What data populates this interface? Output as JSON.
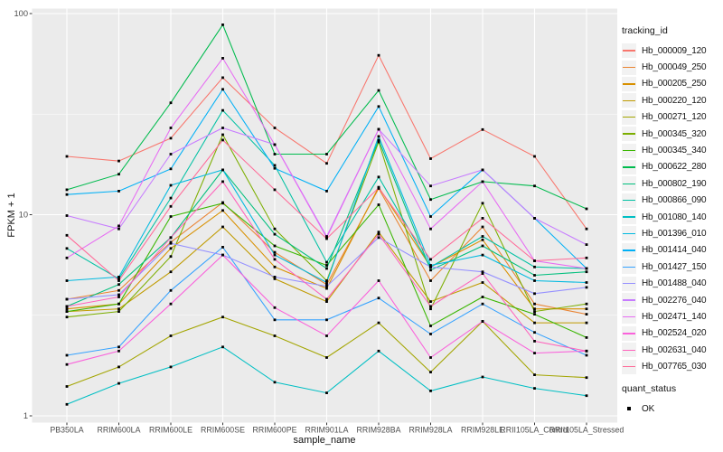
{
  "chart_data": {
    "type": "line",
    "title": "",
    "xlabel": "sample_name",
    "ylabel": "FPKM + 1",
    "y_scale": "log10",
    "grid": true,
    "legend_position": "right",
    "panel_bg": "#EBEBEB",
    "gridline_color": "#FFFFFF",
    "axis_text_color": "#4D4D4D",
    "tick_color": "#333333",
    "point_marker": {
      "shape": "square",
      "color": "#000000",
      "size": 2.8
    },
    "y_ticks": [
      1,
      10,
      100
    ],
    "y_tick_labels": [
      "1",
      "10",
      "100"
    ],
    "y_minor_gridlines": [
      3.162,
      31.623
    ],
    "ylim": [
      0.93,
      106
    ],
    "categories": [
      "PB350LA",
      "RRIM600LA",
      "RRIM600LE",
      "RRIM600SE",
      "RRIM600PE",
      "RRIM901LA",
      "RRIM928BA",
      "RRIM928LA",
      "RRIM928LE",
      "RRII105LA_Control",
      "RRII105LA_Stressed"
    ],
    "legend_title": "tracking_id",
    "series": [
      {
        "name": "Hb_000009_120",
        "color": "#F8766D",
        "values": [
          19.5,
          18.5,
          24,
          48,
          27,
          18,
          62,
          19,
          26.5,
          19.5,
          8.5
        ]
      },
      {
        "name": "Hb_000049_250",
        "color": "#EA8331",
        "values": [
          3.8,
          4.2,
          7.3,
          11.5,
          6.5,
          4.5,
          13.5,
          4.7,
          8.7,
          3.6,
          3.2
        ]
      },
      {
        "name": "Hb_000205_250",
        "color": "#D89000",
        "values": [
          3.4,
          3.6,
          6.8,
          10.5,
          5.5,
          4.3,
          13.7,
          5.5,
          7.5,
          3.4,
          3.4
        ]
      },
      {
        "name": "Hb_000220_120",
        "color": "#C09B00",
        "values": [
          3.3,
          3.4,
          5.2,
          8.7,
          4.8,
          3.7,
          8.2,
          3.7,
          4.6,
          2.9,
          2.9
        ]
      },
      {
        "name": "Hb_000271_120",
        "color": "#A3A500",
        "values": [
          1.4,
          1.75,
          2.5,
          3.1,
          2.5,
          1.95,
          2.9,
          1.65,
          2.95,
          1.6,
          1.55
        ]
      },
      {
        "name": "Hb_000345_320",
        "color": "#7CAE00",
        "values": [
          3.1,
          3.3,
          6.2,
          25,
          8.5,
          4.7,
          23,
          3.4,
          11.4,
          3.3,
          3.6
        ]
      },
      {
        "name": "Hb_000345_340",
        "color": "#39B600",
        "values": [
          3.3,
          3.6,
          9.8,
          11.4,
          7,
          5.6,
          11.2,
          2.8,
          3.9,
          3.2,
          2.45
        ]
      },
      {
        "name": "Hb_000622_280",
        "color": "#00BB4E",
        "values": [
          13.3,
          15.9,
          36,
          88,
          20,
          20,
          41.5,
          11.9,
          14.6,
          13.9,
          10.7
        ]
      },
      {
        "name": "Hb_000802_190",
        "color": "#00BF7D",
        "values": [
          3.5,
          4.5,
          7.7,
          16.7,
          8,
          5.4,
          23.5,
          5.3,
          7,
          5,
          5.2
        ]
      },
      {
        "name": "Hb_000866_090",
        "color": "#00C1A3",
        "values": [
          6.8,
          4.8,
          12.1,
          33,
          17.6,
          5.8,
          15.4,
          5.5,
          7.8,
          5.5,
          5.4
        ]
      },
      {
        "name": "Hb_001080_140",
        "color": "#00BFC4",
        "values": [
          1.14,
          1.45,
          1.75,
          2.2,
          1.47,
          1.3,
          2.1,
          1.33,
          1.56,
          1.37,
          1.26
        ]
      },
      {
        "name": "Hb_001396_010",
        "color": "#00BAE0",
        "values": [
          4.7,
          4.9,
          14,
          16.7,
          6.3,
          4.6,
          24.5,
          5.6,
          6.3,
          4.7,
          4.6
        ]
      },
      {
        "name": "Hb_001414_040",
        "color": "#00B0F6",
        "values": [
          12.6,
          13.1,
          16.9,
          42,
          17,
          13.1,
          34.5,
          9.8,
          16.7,
          9.6,
          5.4
        ]
      },
      {
        "name": "Hb_001427_150",
        "color": "#35A2FF",
        "values": [
          2,
          2.2,
          4.2,
          6.9,
          3,
          3,
          3.85,
          2.55,
          3.6,
          2.6,
          2
        ]
      },
      {
        "name": "Hb_001488_040",
        "color": "#9590FF",
        "values": [
          3.8,
          4,
          7.2,
          6.3,
          4.9,
          4.4,
          7.7,
          5.5,
          5.2,
          4.05,
          4.35
        ]
      },
      {
        "name": "Hb_002276_040",
        "color": "#C77CFF",
        "values": [
          9.9,
          8.5,
          20,
          27,
          22.3,
          7.8,
          26.6,
          13.9,
          16.7,
          9.6,
          7.1
        ]
      },
      {
        "name": "Hb_002471_140",
        "color": "#E76BF3",
        "values": [
          6.1,
          8.8,
          27,
          60,
          22.3,
          7.7,
          26.6,
          8.5,
          14.6,
          5.9,
          5.4
        ]
      },
      {
        "name": "Hb_002524_020",
        "color": "#FA62DB",
        "values": [
          1.8,
          2.1,
          3.6,
          6.3,
          3.45,
          2.5,
          4.7,
          1.95,
          2.95,
          2.05,
          2.1
        ]
      },
      {
        "name": "Hb_002631_040",
        "color": "#FF62BC",
        "values": [
          3.5,
          3.9,
          7.7,
          14.6,
          6,
          3.8,
          8,
          3.5,
          5.1,
          2.35,
          2.1
        ]
      },
      {
        "name": "Hb_007765_030",
        "color": "#FF6A98",
        "values": [
          7.9,
          4.7,
          11,
          23.5,
          13.3,
          7.6,
          13.6,
          6,
          9.6,
          5.9,
          6.1
        ]
      }
    ],
    "quant_legend": {
      "title": "quant_status",
      "items": [
        {
          "label": "OK",
          "marker": "black-square"
        }
      ]
    }
  }
}
